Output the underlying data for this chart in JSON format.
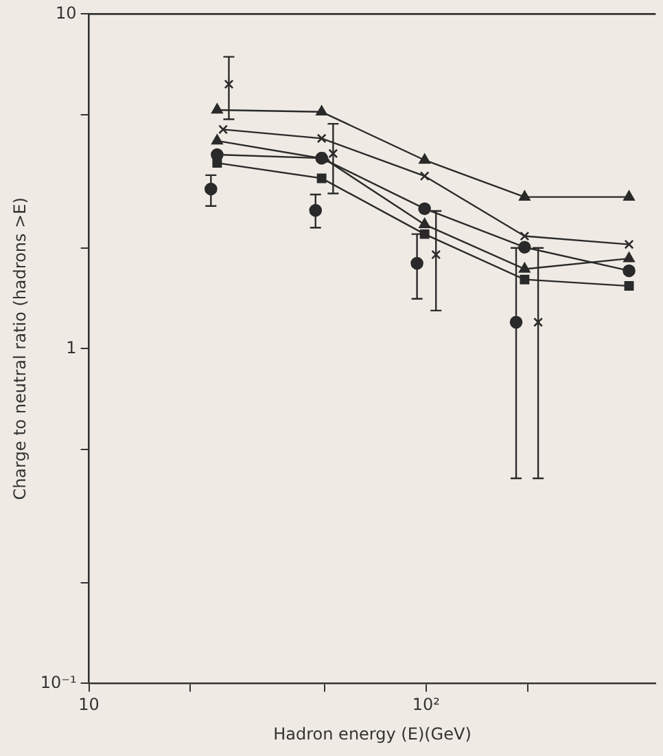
{
  "chart_data": {
    "type": "scatter",
    "xlabel": "Hadron energy (E)(GeV)",
    "ylabel": "Charge to neutral ratio (hadrons >E)",
    "log": "xy",
    "grid": false,
    "legend": false,
    "xlim": [
      10,
      480
    ],
    "xticks": [
      {
        "value": 10,
        "label": "10"
      },
      {
        "value": 20,
        "label": null
      },
      {
        "value": 50,
        "label": null
      },
      {
        "value": 100,
        "label": "10²"
      },
      {
        "value": 200,
        "label": null
      }
    ],
    "ylim": [
      0.1,
      10
    ],
    "yticks": [
      {
        "value": 0.1,
        "label": "10⁻¹"
      },
      {
        "value": 0.2,
        "label": null
      },
      {
        "value": 0.5,
        "label": null
      },
      {
        "value": 1,
        "label": "1"
      },
      {
        "value": 2,
        "label": null
      },
      {
        "value": 5,
        "label": null
      },
      {
        "value": 10,
        "label": "10"
      }
    ],
    "series": [
      {
        "type": "line",
        "marker": "triangle",
        "line_style": "solid",
        "color": "#2a2a2a",
        "x": [
          24,
          49,
          99,
          196,
          400
        ],
        "values": [
          5.17,
          5.1,
          3.66,
          2.84,
          2.84
        ]
      },
      {
        "type": "line",
        "marker": "cross",
        "line_style": "solid",
        "color": "#2a2a2a",
        "x": [
          25,
          49,
          99,
          196,
          400
        ],
        "values": [
          4.52,
          4.25,
          3.28,
          2.17,
          2.05
        ]
      },
      {
        "type": "line",
        "marker": "triangle",
        "line_style": "solid",
        "color": "#2a2a2a",
        "x": [
          24,
          50,
          99,
          196,
          400
        ],
        "values": [
          4.18,
          3.69,
          2.35,
          1.73,
          1.86
        ]
      },
      {
        "type": "line",
        "marker": "circle",
        "line_style": "solid",
        "color": "#2a2a2a",
        "x": [
          24,
          49,
          99,
          196,
          400
        ],
        "values": [
          3.8,
          3.71,
          2.62,
          2.01,
          1.71
        ]
      },
      {
        "type": "line",
        "marker": "square",
        "line_style": "solid",
        "color": "#2a2a2a",
        "x": [
          24,
          49,
          99,
          196,
          400
        ],
        "values": [
          3.59,
          3.23,
          2.2,
          1.61,
          1.54
        ]
      },
      {
        "type": "scatter",
        "marker": "circle",
        "color": "#2a2a2a",
        "x": [
          23,
          47,
          94,
          185
        ],
        "values": [
          3.0,
          2.59,
          1.8,
          1.2
        ],
        "errors": [
          [
            2.67,
            3.3
          ],
          [
            2.3,
            2.89
          ],
          [
            1.41,
            2.2
          ],
          [
            0.41,
            2.0
          ]
        ]
      },
      {
        "type": "scatter",
        "marker": "cross",
        "color": "#2a2a2a",
        "x": [
          26,
          53,
          107,
          215
        ],
        "values": [
          6.17,
          3.83,
          1.91,
          1.2
        ],
        "errors": [
          [
            4.85,
            7.45
          ],
          [
            2.91,
            4.7
          ],
          [
            1.3,
            2.58
          ],
          [
            0.41,
            2.0
          ]
        ]
      }
    ]
  }
}
